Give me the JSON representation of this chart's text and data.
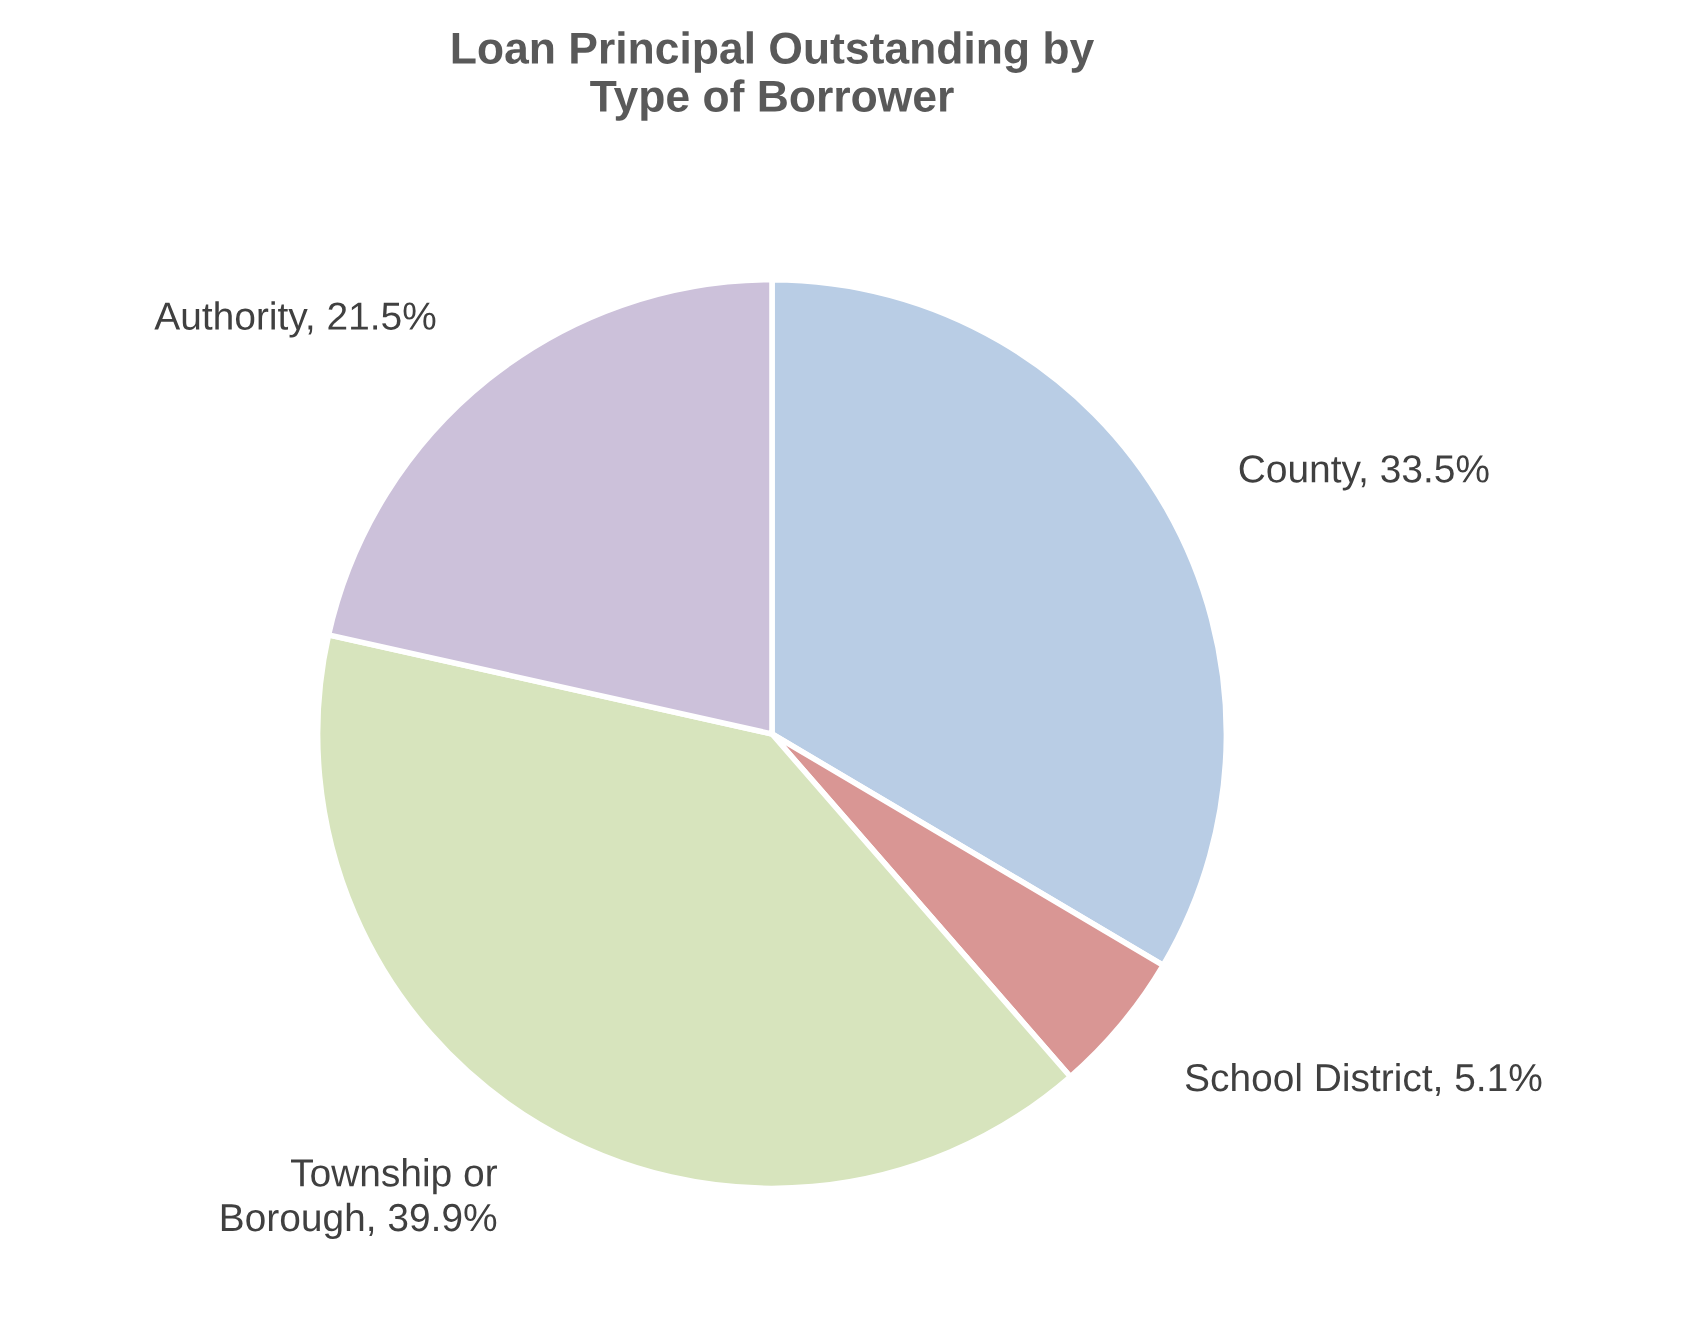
{
  "chart_data": {
    "type": "pie",
    "title": "Loan Principal Outstanding by\nType of Borrower",
    "categories": [
      "County",
      "School District",
      "Township or\nBorough",
      "Authority"
    ],
    "values": [
      33.5,
      5.1,
      39.9,
      21.5
    ],
    "value_labels": [
      "33.5%",
      "5.1%",
      "39.9%",
      "21.5%"
    ],
    "colors": [
      "#b9cde5",
      "#d99694",
      "#d7e4bd",
      "#ccc1da"
    ]
  }
}
